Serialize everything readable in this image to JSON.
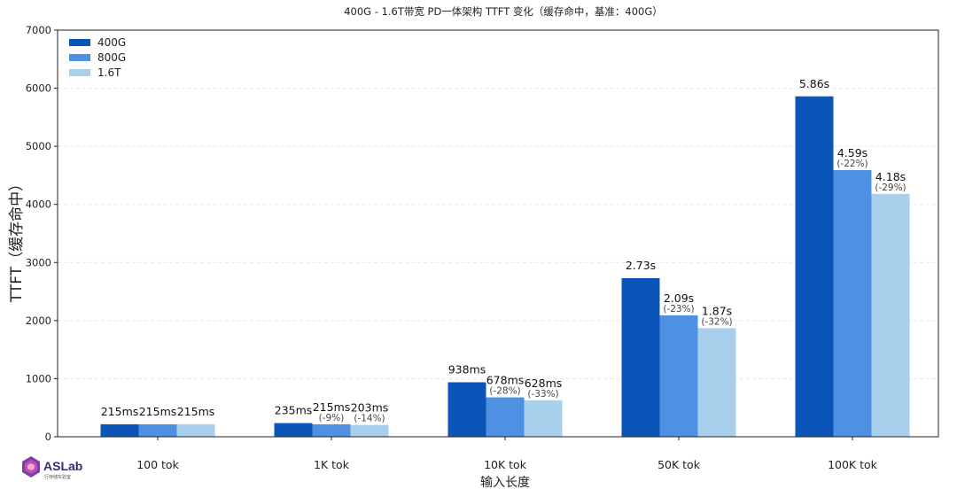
{
  "chart_data": {
    "type": "bar",
    "title": "400G - 1.6T带宽 PD一体架构 TTFT 变化（缓存命中，基准：400G）",
    "xlabel": "输入长度",
    "ylabel": "TTFT（缓存命中）",
    "ylim": [
      0,
      7000
    ],
    "yticks": [
      0,
      1000,
      2000,
      3000,
      4000,
      5000,
      6000,
      7000
    ],
    "grid": "y-dashed",
    "legend_position": "top-left",
    "categories": [
      "100 tok",
      "1K tok",
      "10K tok",
      "50K tok",
      "100K tok"
    ],
    "series": [
      {
        "name": "400G",
        "color": "#0c55b8",
        "values": [
          215,
          235,
          938,
          2730,
          5860
        ],
        "labels": [
          "215ms",
          "235ms",
          "938ms",
          "2.73s",
          "5.86s"
        ],
        "changes": [
          "",
          "",
          "",
          "",
          ""
        ]
      },
      {
        "name": "800G",
        "color": "#4f90e3",
        "values": [
          215,
          215,
          678,
          2090,
          4590
        ],
        "labels": [
          "215ms",
          "215ms",
          "678ms",
          "2.09s",
          "4.59s"
        ],
        "changes": [
          "",
          "(-9%)",
          "(-28%)",
          "(-23%)",
          "(-22%)"
        ]
      },
      {
        "name": "1.6T",
        "color": "#a8cfec",
        "values": [
          215,
          203,
          628,
          1870,
          4180
        ],
        "labels": [
          "215ms",
          "203ms",
          "628ms",
          "1.87s",
          "4.18s"
        ],
        "changes": [
          "",
          "(-14%)",
          "(-33%)",
          "(-32%)",
          "(-29%)"
        ]
      }
    ]
  },
  "watermark": {
    "brand": "ASLab",
    "tagline": "行存储实验室"
  }
}
